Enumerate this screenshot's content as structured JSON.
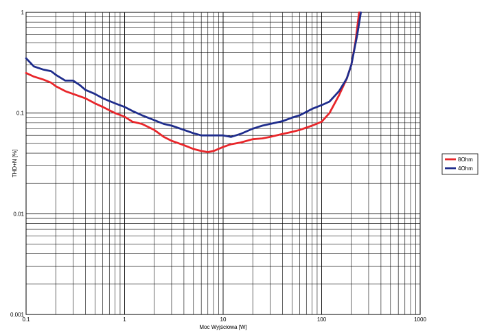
{
  "chart_data": {
    "type": "line",
    "xscale": "log",
    "yscale": "log",
    "xlim": [
      0.1,
      1000
    ],
    "ylim": [
      0.001,
      1
    ],
    "xlabel": "Moc Wyjściowa [W]",
    "ylabel": "THD+N [%]",
    "grid": true,
    "legend_position": "right",
    "x_ticks": [
      {
        "value": 0.1,
        "label": "0.1"
      },
      {
        "value": 1,
        "label": "1"
      },
      {
        "value": 10,
        "label": "10"
      },
      {
        "value": 100,
        "label": "100"
      },
      {
        "value": 1000,
        "label": "1000"
      }
    ],
    "y_ticks": [
      {
        "value": 1,
        "label": "1"
      },
      {
        "value": 0.1,
        "label": "0.1"
      },
      {
        "value": 0.01,
        "label": "0.01"
      },
      {
        "value": 0.001,
        "label": "0.001"
      }
    ],
    "series": [
      {
        "name": "8Ohm",
        "color": "#e8262a",
        "points": [
          [
            0.1,
            0.25
          ],
          [
            0.12,
            0.23
          ],
          [
            0.15,
            0.215
          ],
          [
            0.18,
            0.2
          ],
          [
            0.2,
            0.185
          ],
          [
            0.25,
            0.165
          ],
          [
            0.3,
            0.155
          ],
          [
            0.4,
            0.14
          ],
          [
            0.5,
            0.125
          ],
          [
            0.6,
            0.115
          ],
          [
            0.8,
            0.1
          ],
          [
            1.0,
            0.092
          ],
          [
            1.2,
            0.082
          ],
          [
            1.5,
            0.078
          ],
          [
            2.0,
            0.068
          ],
          [
            2.5,
            0.058
          ],
          [
            3.0,
            0.053
          ],
          [
            4.0,
            0.048
          ],
          [
            5.0,
            0.044
          ],
          [
            6.0,
            0.042
          ],
          [
            7.0,
            0.041
          ],
          [
            8.0,
            0.042
          ],
          [
            10.0,
            0.046
          ],
          [
            12.0,
            0.049
          ],
          [
            15.0,
            0.051
          ],
          [
            20.0,
            0.055
          ],
          [
            25.0,
            0.056
          ],
          [
            30.0,
            0.058
          ],
          [
            40.0,
            0.062
          ],
          [
            50.0,
            0.065
          ],
          [
            60.0,
            0.068
          ],
          [
            80.0,
            0.075
          ],
          [
            100.0,
            0.082
          ],
          [
            120.0,
            0.1
          ],
          [
            150.0,
            0.15
          ],
          [
            180.0,
            0.22
          ],
          [
            200.0,
            0.3
          ],
          [
            220.0,
            0.5
          ],
          [
            240.0,
            1.0
          ]
        ]
      },
      {
        "name": "4Ohm",
        "color": "#1f2d8c",
        "points": [
          [
            0.1,
            0.35
          ],
          [
            0.12,
            0.29
          ],
          [
            0.15,
            0.27
          ],
          [
            0.18,
            0.26
          ],
          [
            0.2,
            0.24
          ],
          [
            0.25,
            0.21
          ],
          [
            0.3,
            0.21
          ],
          [
            0.35,
            0.19
          ],
          [
            0.4,
            0.17
          ],
          [
            0.5,
            0.155
          ],
          [
            0.6,
            0.14
          ],
          [
            0.8,
            0.125
          ],
          [
            1.0,
            0.115
          ],
          [
            1.2,
            0.105
          ],
          [
            1.5,
            0.095
          ],
          [
            2.0,
            0.085
          ],
          [
            2.5,
            0.078
          ],
          [
            3.0,
            0.075
          ],
          [
            4.0,
            0.068
          ],
          [
            5.0,
            0.063
          ],
          [
            6.0,
            0.06
          ],
          [
            8.0,
            0.06
          ],
          [
            10.0,
            0.06
          ],
          [
            12.0,
            0.058
          ],
          [
            15.0,
            0.062
          ],
          [
            20.0,
            0.07
          ],
          [
            25.0,
            0.075
          ],
          [
            30.0,
            0.078
          ],
          [
            40.0,
            0.083
          ],
          [
            50.0,
            0.09
          ],
          [
            60.0,
            0.095
          ],
          [
            80.0,
            0.11
          ],
          [
            100.0,
            0.12
          ],
          [
            120.0,
            0.13
          ],
          [
            150.0,
            0.165
          ],
          [
            180.0,
            0.22
          ],
          [
            200.0,
            0.3
          ],
          [
            230.0,
            0.6
          ],
          [
            250.0,
            1.0
          ]
        ]
      }
    ]
  }
}
